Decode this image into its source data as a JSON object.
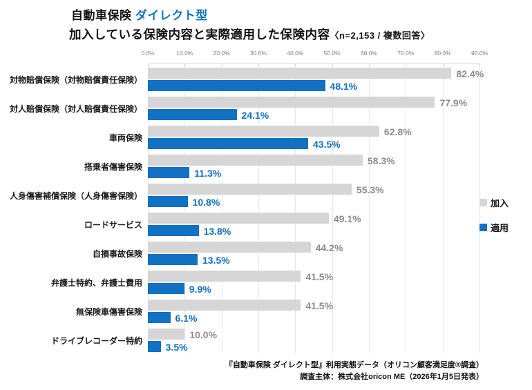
{
  "header": {
    "title_main": "自動車保険 ",
    "title_accent": "ダイレクト型",
    "subtitle": "加入している保険内容と実際適用した保険内容",
    "subtitle_note": "〈n=2,153 / 複数回答〉"
  },
  "legend": {
    "items": [
      {
        "label": "加入",
        "color": "#d6d6d6"
      },
      {
        "label": "適用",
        "color": "#1271c2"
      }
    ]
  },
  "footer": {
    "line1": "『自動車保険 ダイレクト型』利用実態データ（オリコン顧客満足度®調査）",
    "line2": "調査主体：株式会社oricon ME（2026年1月5日発表）"
  },
  "chart_data": {
    "type": "bar",
    "orientation": "horizontal",
    "title": "自動車保険 ダイレクト型 加入している保険内容と実際適用した保険内容",
    "sample_note": "n=2,153 / 複数回答",
    "categories": [
      "対物賠償保険（対物賠償責任保険）",
      "対人賠償保険（対人賠償責任保険）",
      "車両保険",
      "搭乗者傷害保険",
      "人身傷害補償保険（人身傷害保険）",
      "ロードサービス",
      "自損事故保険",
      "弁護士特約、弁護士費用",
      "無保険車傷害保険",
      "ドライブレコーダー特約"
    ],
    "series": [
      {
        "name": "加入",
        "color": "#d6d6d6",
        "values": [
          82.4,
          77.9,
          62.8,
          58.3,
          55.3,
          49.1,
          44.2,
          41.5,
          41.5,
          10.0
        ]
      },
      {
        "name": "適用",
        "color": "#1271c2",
        "values": [
          48.1,
          24.1,
          43.5,
          11.3,
          10.8,
          13.8,
          13.5,
          9.9,
          6.1,
          3.5
        ]
      }
    ],
    "x_ticks": [
      "0.0%",
      "10.0%",
      "20.0%",
      "30.0%",
      "40.0%",
      "50.0%",
      "60.0%",
      "70.0%",
      "80.0%",
      "90.0%"
    ],
    "xlim": [
      0,
      90
    ],
    "grid": true,
    "legend_position": "right",
    "value_label_format": "0.0%"
  }
}
